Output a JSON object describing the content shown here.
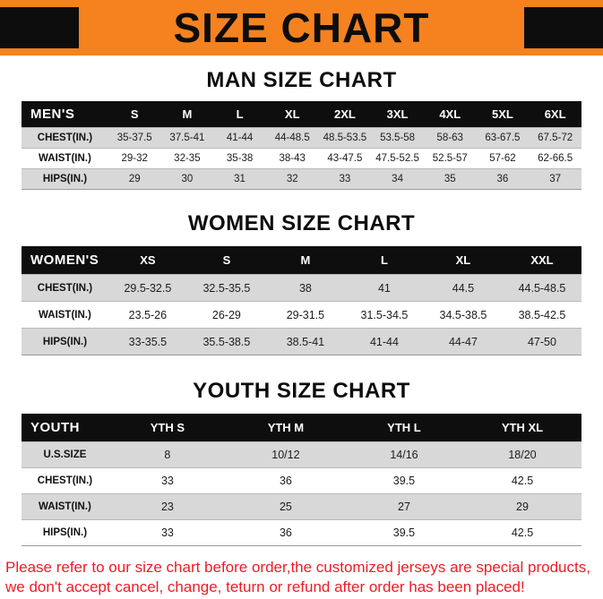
{
  "banner": {
    "title": "SIZE CHART"
  },
  "colors": {
    "banner_orange": "#F5821F",
    "table_header_black": "#0e0e0e",
    "row_shade_gray": "#d8d8d8",
    "footer_red": "#EE1C25"
  },
  "footer": {
    "line1": "Please refer to our size chart before order,the customized jerseys are special products,",
    "line2": "we don't accept cancel, change, teturn or refund after order has been placed!"
  },
  "chart_data": [
    {
      "type": "table",
      "title": "MAN SIZE CHART",
      "corner_label": "MEN'S",
      "columns": [
        "S",
        "M",
        "L",
        "XL",
        "2XL",
        "3XL",
        "4XL",
        "5XL",
        "6XL"
      ],
      "rows": [
        {
          "label": "CHEST(IN.)",
          "values": [
            "35-37.5",
            "37.5-41",
            "41-44",
            "44-48.5",
            "48.5-53.5",
            "53.5-58",
            "58-63",
            "63-67.5",
            "67.5-72"
          ]
        },
        {
          "label": "WAIST(IN.)",
          "values": [
            "29-32",
            "32-35",
            "35-38",
            "38-43",
            "43-47.5",
            "47.5-52.5",
            "52.5-57",
            "57-62",
            "62-66.5"
          ]
        },
        {
          "label": "HIPS(IN.)",
          "values": [
            "29",
            "30",
            "31",
            "32",
            "33",
            "34",
            "35",
            "36",
            "37"
          ]
        }
      ]
    },
    {
      "type": "table",
      "title": "WOMEN SIZE CHART",
      "corner_label": "WOMEN'S",
      "columns": [
        "XS",
        "S",
        "M",
        "L",
        "XL",
        "XXL"
      ],
      "rows": [
        {
          "label": "CHEST(IN.)",
          "values": [
            "29.5-32.5",
            "32.5-35.5",
            "38",
            "41",
            "44.5",
            "44.5-48.5"
          ]
        },
        {
          "label": "WAIST(IN.)",
          "values": [
            "23.5-26",
            "26-29",
            "29-31.5",
            "31.5-34.5",
            "34.5-38.5",
            "38.5-42.5"
          ]
        },
        {
          "label": "HIPS(IN.)",
          "values": [
            "33-35.5",
            "35.5-38.5",
            "38.5-41",
            "41-44",
            "44-47",
            "47-50"
          ]
        }
      ]
    },
    {
      "type": "table",
      "title": "YOUTH SIZE CHART",
      "corner_label": "YOUTH",
      "columns": [
        "YTH S",
        "YTH M",
        "YTH L",
        "YTH XL"
      ],
      "rows": [
        {
          "label": "U.S.SIZE",
          "values": [
            "8",
            "10/12",
            "14/16",
            "18/20"
          ]
        },
        {
          "label": "CHEST(IN.)",
          "values": [
            "33",
            "36",
            "39.5",
            "42.5"
          ]
        },
        {
          "label": "WAIST(IN.)",
          "values": [
            "23",
            "25",
            "27",
            "29"
          ]
        },
        {
          "label": "HIPS(IN.)",
          "values": [
            "33",
            "36",
            "39.5",
            "42.5"
          ]
        }
      ]
    }
  ]
}
